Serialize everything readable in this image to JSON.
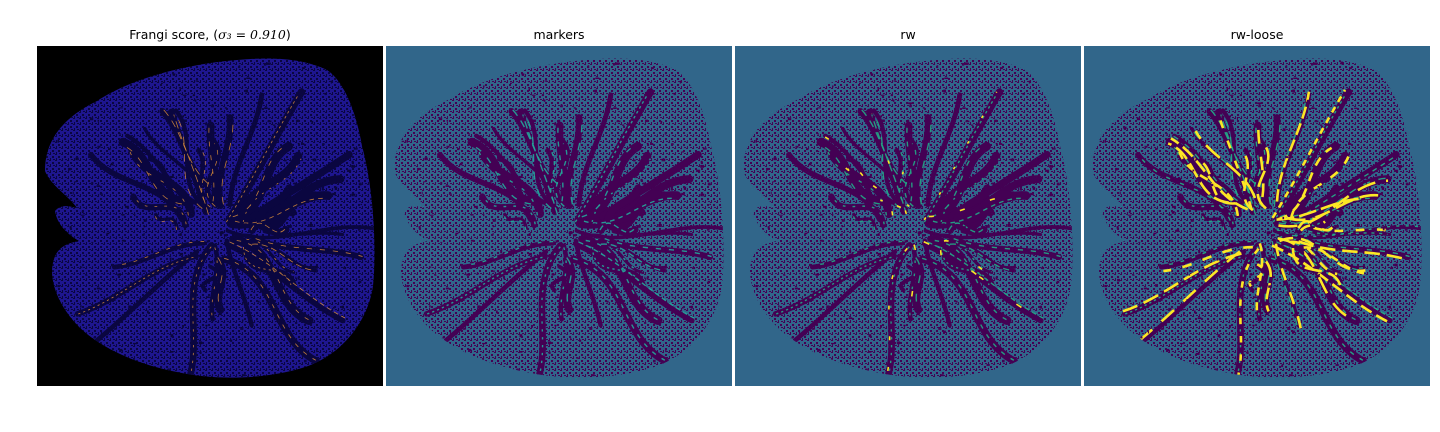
{
  "figure": {
    "panels": [
      {
        "id": "frangi",
        "title": "Frangi score, (",
        "title_math": "σ₃ = 0.910",
        "title_end": ")",
        "background": "#000000",
        "tissue": "#1e168f",
        "vessel": "#0a0640",
        "highlight": "#e0903a"
      },
      {
        "id": "markers",
        "title": "markers",
        "background": "#31668a",
        "tissue": "#31668a",
        "vessel": "#440154",
        "highlight": "#23a99a"
      },
      {
        "id": "rw",
        "title": "rw",
        "background": "#31668a",
        "tissue": "#31668a",
        "vessel": "#440154",
        "highlight": "#22aa86",
        "accent": "#fde725"
      },
      {
        "id": "rw-loose",
        "title": "rw-loose",
        "background": "#31668a",
        "tissue": "#31668a",
        "vessel": "#440154",
        "highlight": "#21b289",
        "accent": "#fde725"
      }
    ]
  }
}
